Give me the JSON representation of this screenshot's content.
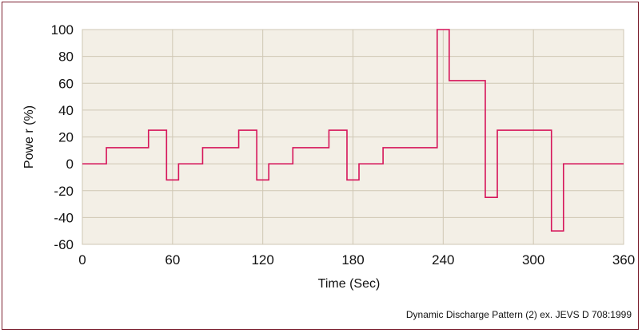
{
  "chart_data": {
    "type": "line",
    "step": true,
    "title": "",
    "xlabel": "Time   (Sec)",
    "ylabel": "Powe r  (%)",
    "caption": "Dynamic Discharge Pattern (2)   ex. JEVS D 708:1999",
    "xlim": [
      0,
      360
    ],
    "ylim": [
      -60,
      100
    ],
    "xticks": [
      0,
      60,
      120,
      180,
      240,
      300,
      360
    ],
    "yticks": [
      100,
      80,
      60,
      40,
      20,
      0,
      -20,
      -40,
      -60
    ],
    "grid": true,
    "colors": {
      "line": "#d6155a",
      "plot_bg": "#f3efe6",
      "grid": "#cfc7b4",
      "frame": "#7a1e2e"
    },
    "series": [
      {
        "x": [
          0,
          16,
          16,
          44,
          44,
          56,
          56,
          64,
          64,
          80,
          80,
          104,
          104,
          116,
          116,
          124,
          124,
          140,
          140,
          164,
          164,
          176,
          176,
          184,
          184,
          200,
          200,
          236,
          236,
          244,
          244,
          268,
          268,
          276,
          276,
          304,
          304,
          312,
          312,
          320,
          320,
          360
        ],
        "y": [
          0,
          0,
          12,
          12,
          25,
          25,
          -12,
          -12,
          0,
          0,
          12,
          12,
          25,
          25,
          -12,
          -12,
          0,
          0,
          12,
          12,
          25,
          25,
          -12,
          -12,
          0,
          0,
          12,
          12,
          100,
          100,
          62,
          62,
          -25,
          -25,
          25,
          25,
          25,
          25,
          -50,
          -50,
          0,
          0
        ]
      }
    ]
  }
}
